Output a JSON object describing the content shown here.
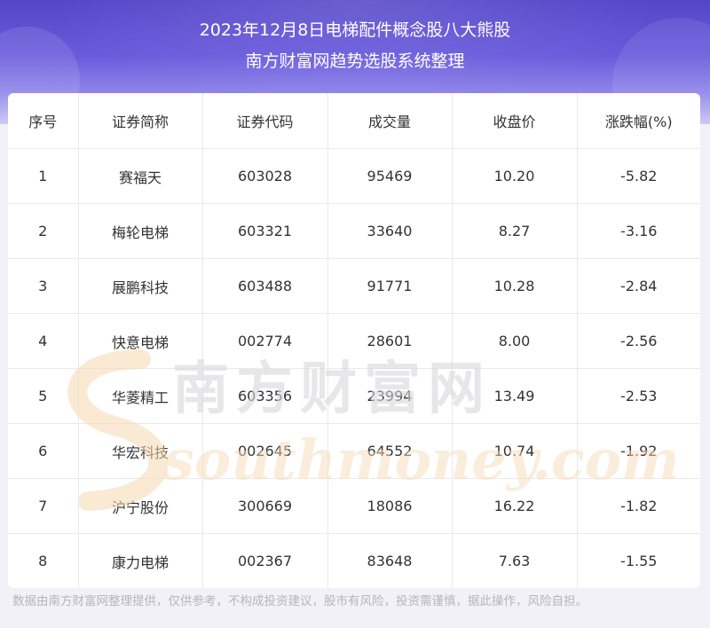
{
  "header": {
    "title": "2023年12月8日电梯配件概念股八大熊股",
    "subtitle": "南方财富网趋势选股系统整理"
  },
  "table": {
    "columns": [
      "序号",
      "证券简称",
      "证券代码",
      "成交量",
      "收盘价",
      "涨跌幅(%)"
    ],
    "rows": [
      [
        "1",
        "赛福天",
        "603028",
        "95469",
        "10.20",
        "-5.82"
      ],
      [
        "2",
        "梅轮电梯",
        "603321",
        "33640",
        "8.27",
        "-3.16"
      ],
      [
        "3",
        "展鹏科技",
        "603488",
        "91771",
        "10.28",
        "-2.84"
      ],
      [
        "4",
        "快意电梯",
        "002774",
        "28601",
        "8.00",
        "-2.56"
      ],
      [
        "5",
        "华菱精工",
        "603356",
        "23994",
        "13.49",
        "-2.53"
      ],
      [
        "6",
        "华宏科技",
        "002645",
        "64552",
        "10.74",
        "-1.92"
      ],
      [
        "7",
        "沪宁股份",
        "300669",
        "18086",
        "16.22",
        "-1.82"
      ],
      [
        "8",
        "康力电梯",
        "002367",
        "83648",
        "7.63",
        "-1.55"
      ]
    ]
  },
  "watermark": {
    "cn": "南方财富网",
    "en": "southmoney.com"
  },
  "footer": {
    "disclaimer": "数据由南方财富网整理提供，仅供参考，不构成投资建议，股市有风险，投资需谨慎，据此操作，风险自担。"
  }
}
